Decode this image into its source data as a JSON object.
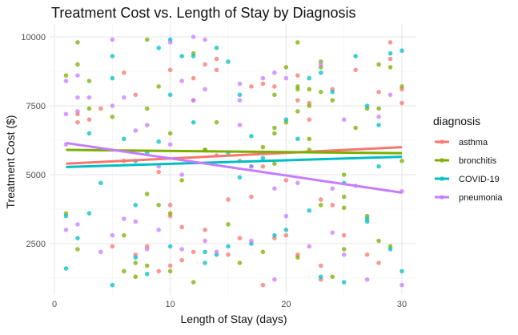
{
  "chart_data": {
    "type": "scatter",
    "title": "Treatment Cost vs. Length of Stay by Diagnosis",
    "xlabel": "Length of Stay (days)",
    "ylabel": "Treatment Cost ($)",
    "xlim": [
      0,
      31
    ],
    "ylim": [
      600,
      10200
    ],
    "xticks": [
      0,
      10,
      20,
      30
    ],
    "yticks": [
      2500,
      5000,
      7500,
      10000
    ],
    "ytick_labels": [
      "2500",
      "5000",
      "7500",
      "10000"
    ],
    "grid": true,
    "legend": {
      "title": "diagnosis",
      "position": "right"
    },
    "series": [
      {
        "name": "asthma",
        "color": "#F8766D",
        "trend": [
          [
            1,
            5400
          ],
          [
            30,
            6000
          ]
        ],
        "points": [
          [
            2,
            7200
          ],
          [
            2,
            6900
          ],
          [
            3,
            7000
          ],
          [
            4,
            7400
          ],
          [
            5,
            2400
          ],
          [
            6,
            8700
          ],
          [
            6,
            5500
          ],
          [
            7,
            7900
          ],
          [
            7,
            2100
          ],
          [
            8,
            2400
          ],
          [
            9,
            5100
          ],
          [
            9,
            1500
          ],
          [
            10,
            8800
          ],
          [
            10,
            3900
          ],
          [
            10,
            3500
          ],
          [
            10,
            1700
          ],
          [
            11,
            3100
          ],
          [
            11,
            1900
          ],
          [
            12,
            8500
          ],
          [
            12,
            2200
          ],
          [
            12,
            7700
          ],
          [
            13,
            9000
          ],
          [
            13,
            3000
          ],
          [
            14,
            9200
          ],
          [
            14,
            5700
          ],
          [
            14,
            8800
          ],
          [
            15,
            4100
          ],
          [
            15,
            2100
          ],
          [
            16,
            5500
          ],
          [
            16,
            2700
          ],
          [
            17,
            4200
          ],
          [
            17,
            8200
          ],
          [
            18,
            8300
          ],
          [
            18,
            5300
          ],
          [
            18,
            1000
          ],
          [
            19,
            8200
          ],
          [
            19,
            2700
          ],
          [
            20,
            4800
          ],
          [
            20,
            2800
          ],
          [
            21,
            7700
          ],
          [
            21,
            2100
          ],
          [
            21,
            8600
          ],
          [
            22,
            7600
          ],
          [
            22,
            7000
          ],
          [
            23,
            4100
          ],
          [
            23,
            1700
          ],
          [
            23,
            1200
          ],
          [
            24,
            3900
          ],
          [
            24,
            8100
          ],
          [
            25,
            2800
          ],
          [
            26,
            8800
          ],
          [
            27,
            2100
          ],
          [
            28,
            1800
          ],
          [
            28,
            8000
          ],
          [
            29,
            9800
          ],
          [
            29,
            9200
          ],
          [
            30,
            7600
          ],
          [
            30,
            8100
          ]
        ]
      },
      {
        "name": "bronchitis",
        "color": "#7CAE00",
        "trend": [
          [
            1,
            5900
          ],
          [
            30,
            5780
          ]
        ],
        "points": [
          [
            1,
            8600
          ],
          [
            1,
            3600
          ],
          [
            2,
            9800
          ],
          [
            2,
            9000
          ],
          [
            2,
            2300
          ],
          [
            3,
            7400
          ],
          [
            3,
            8400
          ],
          [
            5,
            7100
          ],
          [
            6,
            2800
          ],
          [
            6,
            1500
          ],
          [
            7,
            1800
          ],
          [
            7,
            1300
          ],
          [
            8,
            9900
          ],
          [
            8,
            7400
          ],
          [
            8,
            4300
          ],
          [
            8,
            1700
          ],
          [
            9,
            3900
          ],
          [
            9,
            8200
          ],
          [
            10,
            1500
          ],
          [
            10,
            3600
          ],
          [
            10,
            6500
          ],
          [
            11,
            4800
          ],
          [
            12,
            9400
          ],
          [
            12,
            1100
          ],
          [
            13,
            5900
          ],
          [
            13,
            5900
          ],
          [
            14,
            6900
          ],
          [
            15,
            3200
          ],
          [
            16,
            1800
          ],
          [
            18,
            5800
          ],
          [
            18,
            6000
          ],
          [
            18,
            2200
          ],
          [
            19,
            6700
          ],
          [
            19,
            5400
          ],
          [
            19,
            7900
          ],
          [
            19,
            6500
          ],
          [
            20,
            8900
          ],
          [
            20,
            6900
          ],
          [
            21,
            9800
          ],
          [
            21,
            8100
          ],
          [
            21,
            8200
          ],
          [
            21,
            7300
          ],
          [
            21,
            2000
          ],
          [
            22,
            6300
          ],
          [
            22,
            5900
          ],
          [
            22,
            8100
          ],
          [
            22,
            7500
          ],
          [
            23,
            8900
          ],
          [
            23,
            8000
          ],
          [
            23,
            9100
          ],
          [
            23,
            3900
          ],
          [
            24,
            7700
          ],
          [
            24,
            1300
          ],
          [
            25,
            4200
          ],
          [
            25,
            5000
          ],
          [
            25,
            3800
          ],
          [
            25,
            2300
          ],
          [
            26,
            6700
          ],
          [
            27,
            7400
          ],
          [
            27,
            3500
          ],
          [
            28,
            7400
          ],
          [
            28,
            9000
          ],
          [
            28,
            2600
          ],
          [
            29,
            8900
          ],
          [
            29,
            2400
          ],
          [
            30,
            8200
          ],
          [
            30,
            5500
          ]
        ]
      },
      {
        "name": "COVID-19",
        "color": "#00BFC4",
        "trend": [
          [
            1,
            5280
          ],
          [
            30,
            5650
          ]
        ],
        "points": [
          [
            1,
            3500
          ],
          [
            1,
            1600
          ],
          [
            2,
            2700
          ],
          [
            3,
            6500
          ],
          [
            3,
            3600
          ],
          [
            4,
            4700
          ],
          [
            5,
            9300
          ],
          [
            5,
            8500
          ],
          [
            5,
            1000
          ],
          [
            6,
            6300
          ],
          [
            7,
            5500
          ],
          [
            7,
            2000
          ],
          [
            7,
            3900
          ],
          [
            8,
            1400
          ],
          [
            8,
            5800
          ],
          [
            9,
            9600
          ],
          [
            9,
            6200
          ],
          [
            10,
            7900
          ],
          [
            10,
            2400
          ],
          [
            10,
            9900
          ],
          [
            11,
            9300
          ],
          [
            12,
            9300
          ],
          [
            12,
            6900
          ],
          [
            13,
            1800
          ],
          [
            13,
            2200
          ],
          [
            14,
            2100
          ],
          [
            14,
            9600
          ],
          [
            15,
            5800
          ],
          [
            15,
            9100
          ],
          [
            15,
            2400
          ],
          [
            16,
            7900
          ],
          [
            16,
            4900
          ],
          [
            17,
            6400
          ],
          [
            17,
            5300
          ],
          [
            17,
            2500
          ],
          [
            18,
            5600
          ],
          [
            19,
            2800
          ],
          [
            20,
            3000
          ],
          [
            20,
            7000
          ],
          [
            21,
            6300
          ],
          [
            22,
            3700
          ],
          [
            22,
            8500
          ],
          [
            23,
            8700
          ],
          [
            23,
            1300
          ],
          [
            24,
            8000
          ],
          [
            25,
            1100
          ],
          [
            25,
            4700
          ],
          [
            26,
            9300
          ],
          [
            27,
            3300
          ],
          [
            27,
            3400
          ],
          [
            27,
            7500
          ],
          [
            28,
            6800
          ],
          [
            28,
            5300
          ],
          [
            29,
            2300
          ],
          [
            29,
            9400
          ],
          [
            30,
            1500
          ],
          [
            30,
            9500
          ]
        ]
      },
      {
        "name": "pneumonia",
        "color": "#C77CFF",
        "trend": [
          [
            1,
            6150
          ],
          [
            30,
            4350
          ]
        ],
        "points": [
          [
            1,
            6100
          ],
          [
            1,
            8400
          ],
          [
            1,
            7200
          ],
          [
            1,
            3000
          ],
          [
            2,
            8600
          ],
          [
            2,
            7800
          ],
          [
            2,
            7300
          ],
          [
            2,
            3200
          ],
          [
            3,
            7800
          ],
          [
            4,
            2200
          ],
          [
            5,
            7500
          ],
          [
            5,
            9900
          ],
          [
            5,
            2800
          ],
          [
            6,
            3400
          ],
          [
            6,
            7800
          ],
          [
            7,
            3300
          ],
          [
            7,
            6600
          ],
          [
            8,
            6800
          ],
          [
            8,
            2300
          ],
          [
            9,
            5300
          ],
          [
            9,
            3000
          ],
          [
            10,
            9800
          ],
          [
            10,
            6100
          ],
          [
            11,
            8400
          ],
          [
            11,
            5000
          ],
          [
            11,
            2300
          ],
          [
            12,
            7700
          ],
          [
            12,
            10000
          ],
          [
            13,
            9900
          ],
          [
            13,
            2600
          ],
          [
            13,
            8100
          ],
          [
            14,
            2200
          ],
          [
            16,
            8300
          ],
          [
            16,
            7700
          ],
          [
            16,
            6800
          ],
          [
            17,
            5300
          ],
          [
            17,
            2600
          ],
          [
            18,
            8500
          ],
          [
            19,
            8700
          ],
          [
            19,
            4500
          ],
          [
            19,
            1200
          ],
          [
            20,
            8500
          ],
          [
            20,
            3500
          ],
          [
            21,
            4700
          ],
          [
            22,
            2400
          ],
          [
            23,
            9000
          ],
          [
            24,
            4500
          ],
          [
            24,
            2900
          ],
          [
            25,
            2100
          ],
          [
            25,
            7000
          ],
          [
            26,
            4600
          ],
          [
            27,
            1200
          ],
          [
            28,
            7100
          ],
          [
            29,
            7900
          ],
          [
            30,
            4400
          ],
          [
            30,
            1000
          ]
        ]
      }
    ]
  }
}
